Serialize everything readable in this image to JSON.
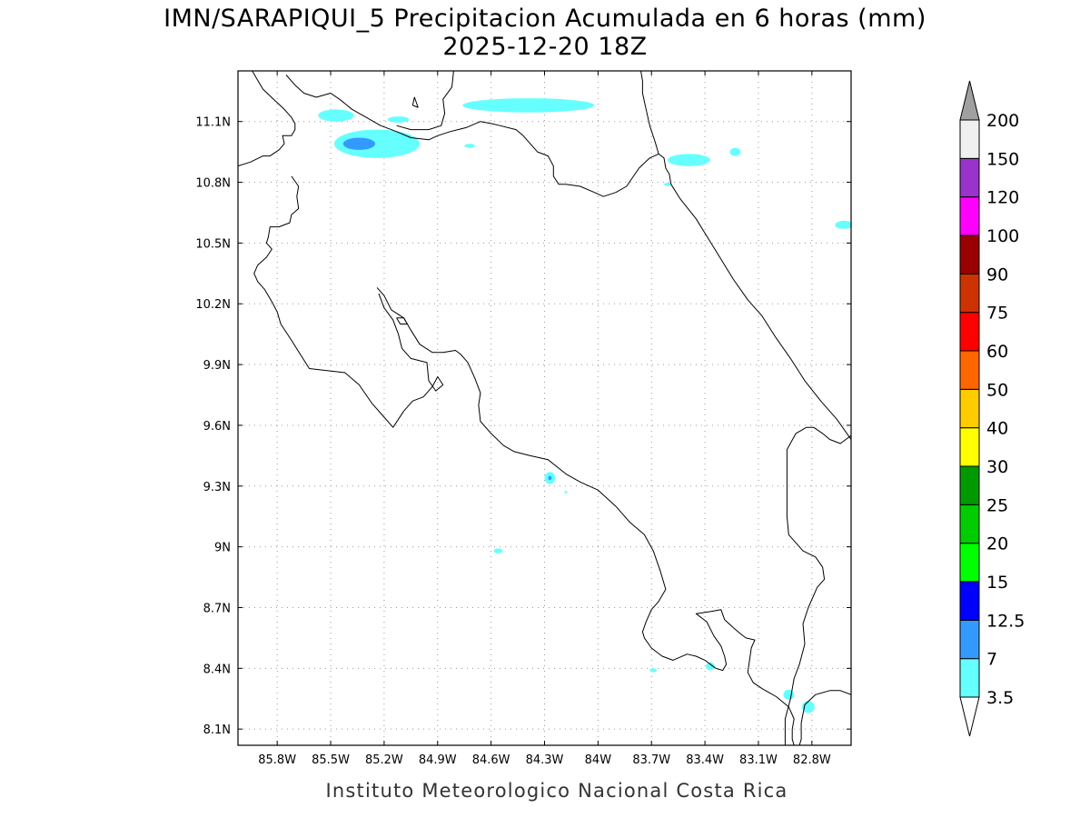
{
  "title": {
    "line1": "IMN/SARAPIQUI_5 Precipitacion Acumulada en 6 horas (mm)",
    "line2": "2025-12-20 18Z"
  },
  "credit": "Instituto Meteorologico Nacional Costa Rica",
  "map": {
    "lon_range": [
      -86.02,
      -82.58
    ],
    "lat_range": [
      8.02,
      11.35
    ],
    "lon_ticks": [
      {
        "value": -85.8,
        "label": "85.8W"
      },
      {
        "value": -85.5,
        "label": "85.5W"
      },
      {
        "value": -85.2,
        "label": "85.2W"
      },
      {
        "value": -84.9,
        "label": "84.9W"
      },
      {
        "value": -84.6,
        "label": "84.6W"
      },
      {
        "value": -84.3,
        "label": "84.3W"
      },
      {
        "value": -84.0,
        "label": "84W"
      },
      {
        "value": -83.7,
        "label": "83.7W"
      },
      {
        "value": -83.4,
        "label": "83.4W"
      },
      {
        "value": -83.1,
        "label": "83.1W"
      },
      {
        "value": -82.8,
        "label": "82.8W"
      }
    ],
    "lat_ticks": [
      {
        "value": 11.1,
        "label": "11.1N"
      },
      {
        "value": 10.8,
        "label": "10.8N"
      },
      {
        "value": 10.5,
        "label": "10.5N"
      },
      {
        "value": 10.2,
        "label": "10.2N"
      },
      {
        "value": 9.9,
        "label": "9.9N"
      },
      {
        "value": 9.6,
        "label": "9.6N"
      },
      {
        "value": 9.3,
        "label": "9.3N"
      },
      {
        "value": 9.0,
        "label": "9N"
      },
      {
        "value": 8.7,
        "label": "8.7N"
      },
      {
        "value": 8.4,
        "label": "8.4N"
      },
      {
        "value": 8.1,
        "label": "8.1N"
      }
    ],
    "grid": true
  },
  "colorbar": {
    "top_color": "#a0a0a0",
    "bottom_color": "#ffffff",
    "bins": [
      {
        "color": "#66ffff"
      },
      {
        "color": "#3399ff"
      },
      {
        "color": "#0000ff"
      },
      {
        "color": "#00ff00"
      },
      {
        "color": "#00cc00"
      },
      {
        "color": "#009900"
      },
      {
        "color": "#ffff00"
      },
      {
        "color": "#ffcc00"
      },
      {
        "color": "#ff6600"
      },
      {
        "color": "#ff0000"
      },
      {
        "color": "#cc3300"
      },
      {
        "color": "#990000"
      },
      {
        "color": "#ff00ff"
      },
      {
        "color": "#9933cc"
      },
      {
        "color": "#f0f0f0"
      }
    ],
    "labels": [
      "3.5",
      "7",
      "12.5",
      "15",
      "20",
      "25",
      "30",
      "40",
      "50",
      "60",
      "75",
      "90",
      "100",
      "120",
      "150",
      "200"
    ]
  },
  "precip_cells": [
    {
      "lon": -85.47,
      "lat": 11.13,
      "rlon": 0.1,
      "rlat": 0.03,
      "level": "3.5"
    },
    {
      "lon": -85.12,
      "lat": 11.11,
      "rlon": 0.06,
      "rlat": 0.015,
      "level": "3.5"
    },
    {
      "lon": -85.24,
      "lat": 10.99,
      "rlon": 0.24,
      "rlat": 0.07,
      "level": "3.5"
    },
    {
      "lon": -85.34,
      "lat": 10.99,
      "rlon": 0.09,
      "rlat": 0.03,
      "level": "7"
    },
    {
      "lon": -84.39,
      "lat": 11.18,
      "rlon": 0.37,
      "rlat": 0.035,
      "level": "3.5"
    },
    {
      "lon": -84.72,
      "lat": 10.98,
      "rlon": 0.03,
      "rlat": 0.01,
      "level": "3.5"
    },
    {
      "lon": -83.49,
      "lat": 10.91,
      "rlon": 0.12,
      "rlat": 0.03,
      "level": "3.5"
    },
    {
      "lon": -83.23,
      "lat": 10.95,
      "rlon": 0.03,
      "rlat": 0.02,
      "level": "3.5"
    },
    {
      "lon": -83.61,
      "lat": 10.79,
      "rlon": 0.02,
      "rlat": 0.008,
      "level": "3.5"
    },
    {
      "lon": -82.62,
      "lat": 10.59,
      "rlon": 0.05,
      "rlat": 0.02,
      "level": "3.5"
    },
    {
      "lon": -84.27,
      "lat": 9.34,
      "rlon": 0.03,
      "rlat": 0.03,
      "level": "3.5"
    },
    {
      "lon": -84.27,
      "lat": 9.34,
      "rlon": 0.01,
      "rlat": 0.01,
      "level": "7"
    },
    {
      "lon": -84.18,
      "lat": 9.27,
      "rlon": 0.008,
      "rlat": 0.006,
      "level": "3.5"
    },
    {
      "lon": -84.56,
      "lat": 8.98,
      "rlon": 0.025,
      "rlat": 0.012,
      "level": "3.5"
    },
    {
      "lon": -83.69,
      "lat": 8.39,
      "rlon": 0.02,
      "rlat": 0.01,
      "level": "3.5"
    },
    {
      "lon": -83.37,
      "lat": 8.41,
      "rlon": 0.025,
      "rlat": 0.02,
      "level": "3.5"
    },
    {
      "lon": -82.93,
      "lat": 8.27,
      "rlon": 0.03,
      "rlat": 0.025,
      "level": "3.5"
    },
    {
      "lon": -82.82,
      "lat": 8.21,
      "rlon": 0.035,
      "rlat": 0.03,
      "level": "3.5"
    }
  ],
  "coastlines": {
    "mainland": [
      [
        -86.02,
        10.88
      ],
      [
        -85.95,
        10.9
      ],
      [
        -85.88,
        10.93
      ],
      [
        -85.84,
        10.93
      ],
      [
        -85.79,
        10.96
      ],
      [
        -85.76,
        10.99
      ],
      [
        -85.77,
        11.03
      ],
      [
        -85.72,
        11.03
      ],
      [
        -85.7,
        11.06
      ],
      [
        -85.7,
        11.09
      ],
      [
        -85.72,
        11.12
      ],
      [
        -85.76,
        11.16
      ],
      [
        -85.82,
        11.21
      ],
      [
        -85.88,
        11.26
      ],
      [
        -85.92,
        11.32
      ],
      [
        -85.94,
        11.35
      ]
    ],
    "nicoya": [
      [
        -85.72,
        10.83
      ],
      [
        -85.68,
        10.78
      ],
      [
        -85.69,
        10.73
      ],
      [
        -85.68,
        10.67
      ],
      [
        -85.72,
        10.64
      ],
      [
        -85.73,
        10.6
      ],
      [
        -85.79,
        10.58
      ],
      [
        -85.84,
        10.58
      ],
      [
        -85.85,
        10.53
      ],
      [
        -85.86,
        10.5
      ],
      [
        -85.83,
        10.47
      ],
      [
        -85.86,
        10.43
      ],
      [
        -85.91,
        10.39
      ],
      [
        -85.93,
        10.35
      ],
      [
        -85.91,
        10.31
      ],
      [
        -85.87,
        10.27
      ],
      [
        -85.83,
        10.21
      ],
      [
        -85.8,
        10.16
      ],
      [
        -85.78,
        10.1
      ],
      [
        -85.72,
        10.02
      ],
      [
        -85.67,
        9.95
      ],
      [
        -85.62,
        9.88
      ],
      [
        -85.52,
        9.87
      ],
      [
        -85.42,
        9.86
      ],
      [
        -85.34,
        9.8
      ],
      [
        -85.27,
        9.71
      ],
      [
        -85.2,
        9.64
      ],
      [
        -85.15,
        9.59
      ],
      [
        -85.12,
        9.63
      ],
      [
        -85.09,
        9.67
      ],
      [
        -85.04,
        9.72
      ],
      [
        -84.98,
        9.74
      ],
      [
        -84.93,
        9.79
      ],
      [
        -84.9,
        9.84
      ],
      [
        -84.87,
        9.8
      ],
      [
        -84.91,
        9.77
      ],
      [
        -84.95,
        9.82
      ],
      [
        -84.96,
        9.91
      ],
      [
        -85.05,
        9.93
      ],
      [
        -85.1,
        9.98
      ],
      [
        -85.12,
        10.05
      ],
      [
        -85.15,
        10.12
      ],
      [
        -85.2,
        10.18
      ],
      [
        -85.23,
        10.25
      ]
    ],
    "gulf_pacific": [
      [
        -85.24,
        10.28
      ],
      [
        -85.2,
        10.24
      ],
      [
        -85.16,
        10.17
      ],
      [
        -85.09,
        10.13
      ],
      [
        -85.05,
        10.07
      ],
      [
        -85.0,
        10.0
      ],
      [
        -84.93,
        9.96
      ],
      [
        -84.87,
        9.96
      ],
      [
        -84.8,
        9.97
      ],
      [
        -84.77,
        9.95
      ],
      [
        -84.73,
        9.91
      ],
      [
        -84.69,
        9.83
      ],
      [
        -84.66,
        9.76
      ],
      [
        -84.67,
        9.7
      ],
      [
        -84.66,
        9.62
      ],
      [
        -84.6,
        9.56
      ],
      [
        -84.53,
        9.5
      ],
      [
        -84.47,
        9.47
      ],
      [
        -84.38,
        9.45
      ],
      [
        -84.28,
        9.43
      ],
      [
        -84.18,
        9.36
      ],
      [
        -84.1,
        9.32
      ],
      [
        -84.0,
        9.28
      ],
      [
        -83.9,
        9.2
      ],
      [
        -83.82,
        9.12
      ],
      [
        -83.74,
        9.06
      ],
      [
        -83.69,
        8.98
      ],
      [
        -83.65,
        8.88
      ],
      [
        -83.62,
        8.79
      ],
      [
        -83.66,
        8.73
      ],
      [
        -83.7,
        8.69
      ],
      [
        -83.73,
        8.63
      ],
      [
        -83.75,
        8.58
      ],
      [
        -83.74,
        8.55
      ],
      [
        -83.7,
        8.5
      ],
      [
        -83.64,
        8.46
      ],
      [
        -83.58,
        8.44
      ],
      [
        -83.5,
        8.47
      ],
      [
        -83.45,
        8.46
      ],
      [
        -83.4,
        8.44
      ],
      [
        -83.34,
        8.4
      ],
      [
        -83.3,
        8.39
      ],
      [
        -83.28,
        8.42
      ],
      [
        -83.29,
        8.46
      ],
      [
        -83.31,
        8.51
      ],
      [
        -83.35,
        8.56
      ],
      [
        -83.39,
        8.63
      ],
      [
        -83.45,
        8.67
      ],
      [
        -83.37,
        8.68
      ],
      [
        -83.31,
        8.69
      ],
      [
        -83.29,
        8.64
      ],
      [
        -83.24,
        8.6
      ],
      [
        -83.2,
        8.57
      ],
      [
        -83.17,
        8.55
      ],
      [
        -83.12,
        8.54
      ],
      [
        -83.14,
        8.5
      ],
      [
        -83.15,
        8.44
      ],
      [
        -83.16,
        8.38
      ],
      [
        -83.13,
        8.33
      ],
      [
        -83.08,
        8.3
      ],
      [
        -83.0,
        8.26
      ],
      [
        -82.93,
        8.21
      ],
      [
        -82.9,
        8.15
      ],
      [
        -82.91,
        8.1
      ],
      [
        -82.91,
        8.05
      ],
      [
        -82.9,
        8.02
      ]
    ],
    "panama_pacific": [
      [
        -82.87,
        8.02
      ],
      [
        -82.86,
        8.05
      ],
      [
        -82.86,
        8.13
      ],
      [
        -82.84,
        8.22
      ],
      [
        -82.78,
        8.27
      ],
      [
        -82.7,
        8.29
      ],
      [
        -82.64,
        8.29
      ],
      [
        -82.58,
        8.27
      ]
    ],
    "border_south": [
      [
        -82.95,
        8.02
      ],
      [
        -82.95,
        8.15
      ],
      [
        -82.92,
        8.25
      ],
      [
        -82.9,
        8.35
      ],
      [
        -82.87,
        8.42
      ],
      [
        -82.84,
        8.52
      ],
      [
        -82.85,
        8.62
      ],
      [
        -82.82,
        8.7
      ],
      [
        -82.77,
        8.8
      ],
      [
        -82.73,
        8.84
      ],
      [
        -82.74,
        8.9
      ],
      [
        -82.78,
        8.95
      ],
      [
        -82.85,
        8.98
      ],
      [
        -82.93,
        9.06
      ],
      [
        -82.94,
        9.15
      ],
      [
        -82.94,
        9.3
      ],
      [
        -82.94,
        9.48
      ],
      [
        -82.89,
        9.56
      ],
      [
        -82.83,
        9.59
      ],
      [
        -82.79,
        9.59
      ],
      [
        -82.74,
        9.56
      ],
      [
        -82.7,
        9.53
      ],
      [
        -82.64,
        9.51
      ],
      [
        -82.58,
        9.55
      ]
    ],
    "caribbean": [
      [
        -82.58,
        9.53
      ],
      [
        -82.66,
        9.63
      ],
      [
        -82.75,
        9.72
      ],
      [
        -82.84,
        9.82
      ],
      [
        -82.92,
        9.93
      ],
      [
        -83.0,
        10.03
      ],
      [
        -83.08,
        10.14
      ],
      [
        -83.16,
        10.22
      ],
      [
        -83.24,
        10.32
      ],
      [
        -83.31,
        10.42
      ],
      [
        -83.38,
        10.52
      ],
      [
        -83.45,
        10.62
      ],
      [
        -83.54,
        10.72
      ],
      [
        -83.59,
        10.79
      ],
      [
        -83.6,
        10.84
      ],
      [
        -83.62,
        10.87
      ],
      [
        -83.63,
        10.92
      ],
      [
        -83.66,
        10.94
      ],
      [
        -83.71,
        10.92
      ],
      [
        -83.77,
        10.87
      ],
      [
        -83.84,
        10.78
      ],
      [
        -83.9,
        10.75
      ],
      [
        -83.97,
        10.73
      ],
      [
        -84.02,
        10.75
      ],
      [
        -84.1,
        10.78
      ],
      [
        -84.18,
        10.79
      ],
      [
        -84.22,
        10.79
      ],
      [
        -84.25,
        10.83
      ],
      [
        -84.25,
        10.88
      ],
      [
        -84.28,
        10.93
      ],
      [
        -84.34,
        10.95
      ],
      [
        -84.38,
        10.99
      ],
      [
        -84.42,
        11.03
      ],
      [
        -84.46,
        11.06
      ],
      [
        -84.55,
        11.08
      ],
      [
        -84.6,
        11.09
      ],
      [
        -84.66,
        11.1
      ],
      [
        -84.74,
        11.07
      ],
      [
        -84.83,
        11.05
      ],
      [
        -84.9,
        11.03
      ],
      [
        -84.95,
        11.01
      ],
      [
        -85.05,
        11.02
      ],
      [
        -85.13,
        11.05
      ],
      [
        -85.22,
        11.08
      ],
      [
        -85.3,
        11.12
      ],
      [
        -85.38,
        11.16
      ],
      [
        -85.45,
        11.21
      ],
      [
        -85.5,
        11.24
      ],
      [
        -85.58,
        11.22
      ],
      [
        -85.65,
        11.24
      ],
      [
        -85.7,
        11.28
      ],
      [
        -85.75,
        11.33
      ]
    ],
    "lake_shore": [
      [
        -85.13,
        11.08
      ],
      [
        -85.05,
        11.06
      ],
      [
        -84.95,
        11.06
      ],
      [
        -84.88,
        11.08
      ],
      [
        -84.86,
        11.14
      ],
      [
        -84.87,
        11.21
      ],
      [
        -84.82,
        11.27
      ],
      [
        -84.81,
        11.35
      ]
    ],
    "caribbean_north": [
      [
        -83.66,
        10.94
      ],
      [
        -83.68,
        11.0
      ],
      [
        -83.71,
        11.08
      ],
      [
        -83.73,
        11.16
      ],
      [
        -83.75,
        11.24
      ],
      [
        -83.75,
        11.3
      ],
      [
        -83.76,
        11.35
      ]
    ],
    "islet_lake": [
      [
        -85.04,
        11.18
      ],
      [
        -85.03,
        11.22
      ],
      [
        -85.01,
        11.17
      ],
      [
        -85.04,
        11.18
      ]
    ],
    "islet_chira": [
      [
        -85.13,
        10.13
      ],
      [
        -85.11,
        10.1
      ],
      [
        -85.07,
        10.1
      ],
      [
        -85.09,
        10.13
      ],
      [
        -85.13,
        10.13
      ]
    ]
  }
}
